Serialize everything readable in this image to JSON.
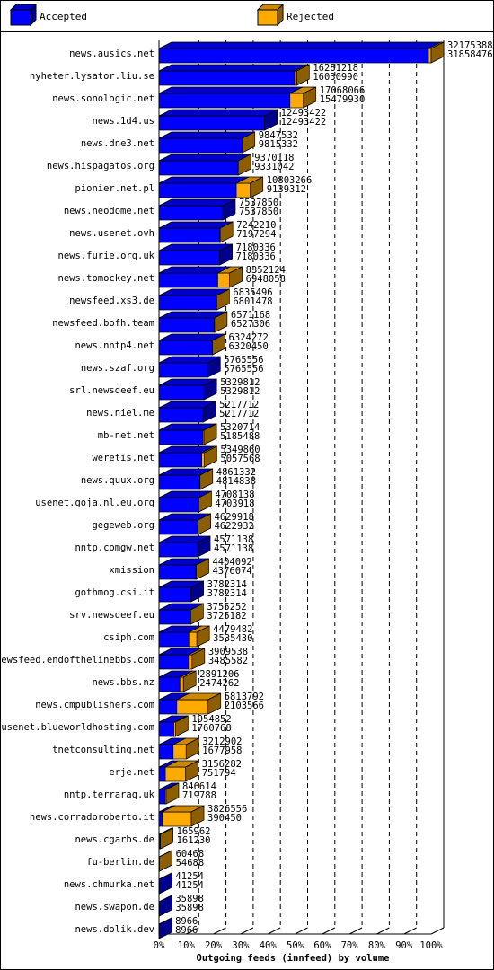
{
  "chart_data": {
    "type": "bar",
    "orientation": "horizontal",
    "stacked": true,
    "three_d": true,
    "xlabel": "Outgoing feeds (innfeed) by volume",
    "categories": [
      "news.ausics.net",
      "nyheter.lysator.liu.se",
      "news.sonologic.net",
      "news.1d4.us",
      "news.dne3.net",
      "news.hispagatos.org",
      "pionier.net.pl",
      "news.neodome.net",
      "news.usenet.ovh",
      "news.furie.org.uk",
      "news.tomockey.net",
      "newsfeed.xs3.de",
      "newsfeed.bofh.team",
      "news.nntp4.net",
      "news.szaf.org",
      "srl.newsdeef.eu",
      "news.niel.me",
      "mb-net.net",
      "weretis.net",
      "news.quux.org",
      "usenet.goja.nl.eu.org",
      "gegeweb.org",
      "nntp.comgw.net",
      "xmission",
      "gothmog.csi.it",
      "srv.newsdeef.eu",
      "csiph.com",
      "newsfeed.endofthelinebbs.com",
      "news.bbs.nz",
      "news.cmpublishers.com",
      "usenet.blueworldhosting.com",
      "tnetconsulting.net",
      "erje.net",
      "nntp.terraraq.uk",
      "news.corradoroberto.it",
      "news.cgarbs.de",
      "fu-berlin.de",
      "news.chmurka.net",
      "news.swapon.de",
      "news.dolik.dev"
    ],
    "series": [
      {
        "name": "Accepted",
        "color": "#0000ff",
        "values": [
          31858476,
          16030990,
          15479930,
          12493422,
          9815332,
          9331042,
          9139312,
          7537850,
          7197294,
          7180336,
          6948058,
          6801478,
          6527306,
          6320450,
          5765556,
          5329812,
          5217712,
          5185488,
          5057568,
          4814838,
          4703918,
          4622932,
          4571138,
          4376074,
          3782314,
          3725182,
          3535430,
          3485582,
          2474262,
          2103566,
          1760768,
          1677958,
          751794,
          719788,
          390450,
          161230,
          54688,
          41254,
          35898,
          8966
        ]
      },
      {
        "name": "Rejected",
        "color": "#ffaa00",
        "values": [
          316912,
          250228,
          1588136,
          0,
          32200,
          39076,
          1663954,
          0,
          44916,
          0,
          1404066,
          34018,
          43862,
          3822,
          0,
          0,
          0,
          135226,
          292292,
          46494,
          4220,
          6986,
          0,
          28018,
          0,
          30070,
          944052,
          423956,
          416944,
          3710226,
          194084,
          1534944,
          2404488,
          126826,
          3436106,
          4732,
          5780,
          0,
          0,
          0
        ]
      }
    ],
    "totals": [
      32175388,
      16281218,
      17068066,
      12493422,
      9847532,
      9370118,
      10803266,
      7537850,
      7242210,
      7180336,
      8352124,
      6835496,
      6571168,
      6324272,
      5765556,
      5329812,
      5217712,
      5320714,
      5349860,
      4861332,
      4708138,
      4629918,
      4571138,
      4404092,
      3782314,
      3755252,
      4479482,
      3909538,
      2891206,
      5813792,
      1954852,
      3212902,
      3156282,
      846614,
      3826556,
      165962,
      60468,
      41254,
      35898,
      8966
    ],
    "xlim": [
      0,
      32175388
    ],
    "xticks": [
      {
        "value": 0,
        "label": "0%"
      },
      {
        "value": 3217538.8,
        "label": "10%"
      },
      {
        "value": 6435077.6,
        "label": "20%"
      },
      {
        "value": 9652616.4,
        "label": "30%"
      },
      {
        "value": 12870155.2,
        "label": "40%"
      },
      {
        "value": 16087694,
        "label": "50%"
      },
      {
        "value": 19305232.8,
        "label": "60%"
      },
      {
        "value": 22522771.6,
        "label": "70%"
      },
      {
        "value": 25740310.4,
        "label": "80%"
      },
      {
        "value": 28957849.2,
        "label": "90%"
      },
      {
        "value": 32175388,
        "label": "100%"
      }
    ],
    "grid": true,
    "legend": "top"
  }
}
